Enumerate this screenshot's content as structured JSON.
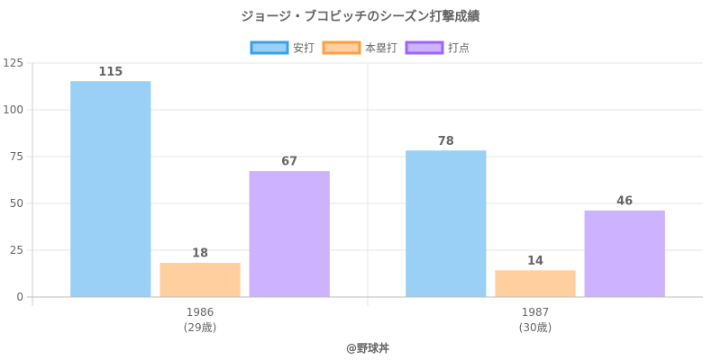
{
  "chart_data": {
    "type": "bar",
    "title": "ジョージ・ブコビッチのシーズン打撃成績",
    "categories": [
      "1986",
      "1987"
    ],
    "category_sublabels": [
      "(29歳)",
      "(30歳)"
    ],
    "series": [
      {
        "name": "安打",
        "values": [
          115,
          78
        ],
        "color": "#9ad0f5",
        "border": "#36a2eb"
      },
      {
        "name": "本塁打",
        "values": [
          18,
          14
        ],
        "color": "#ffcf9f",
        "border": "#ff9f40"
      },
      {
        "name": "打点",
        "values": [
          67,
          46
        ],
        "color": "#ccb2ff",
        "border": "#9966ff"
      }
    ],
    "ylim": [
      0,
      125
    ],
    "yticks": [
      0,
      25,
      50,
      75,
      100,
      125
    ],
    "grid": true,
    "legend_position": "top"
  },
  "credit": "@野球丼"
}
